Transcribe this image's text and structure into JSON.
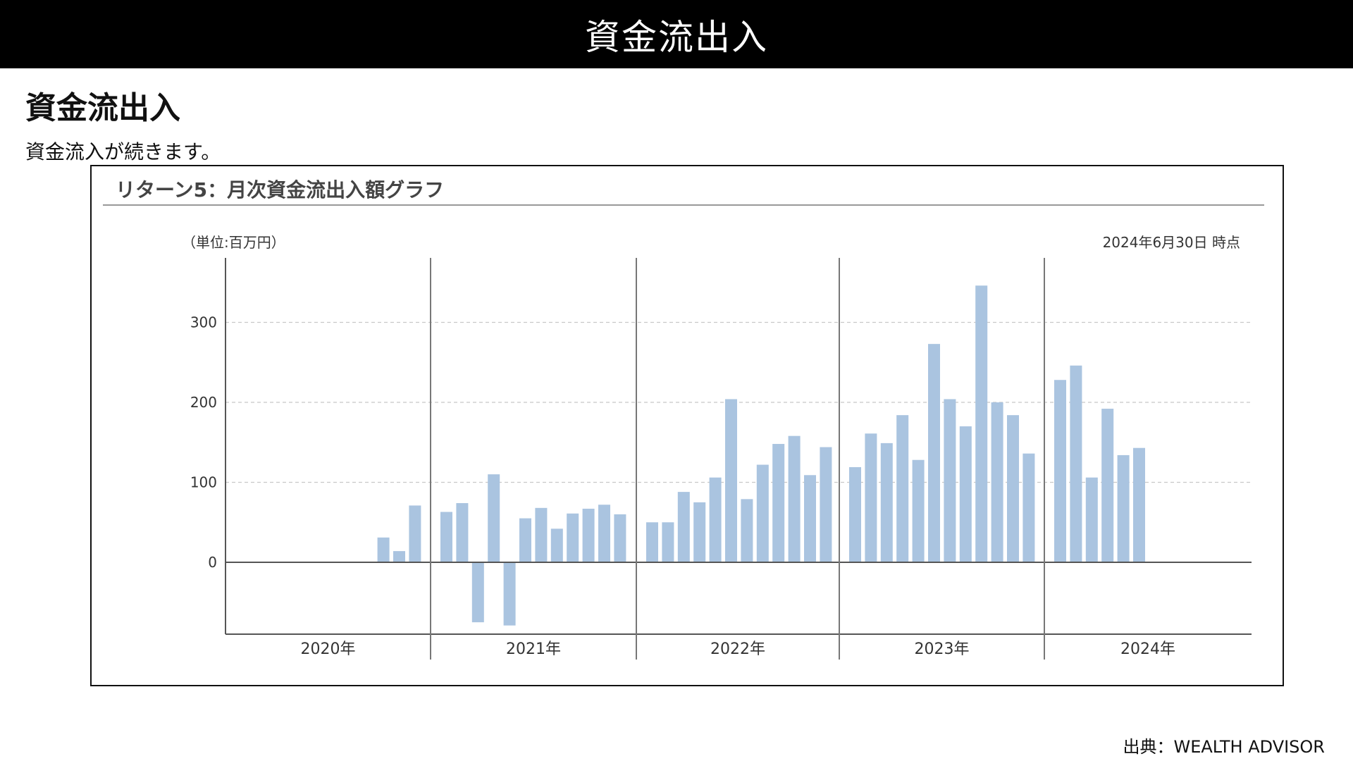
{
  "header": {
    "title": "資金流出入"
  },
  "section": {
    "title": "資金流出入",
    "subtitle": "資金流入が続きます。"
  },
  "chart_data": {
    "type": "bar",
    "title": "リターン5：月次資金流出入額グラフ",
    "unit_label": "（単位:百万円）",
    "as_of": "2024年6月30日 時点",
    "xlabel": "",
    "ylabel": "",
    "ylim": [
      -88,
      380
    ],
    "yticks": [
      0,
      100,
      200,
      300
    ],
    "grid": true,
    "color": "#aac4e0",
    "years": [
      {
        "label": "2020年",
        "values": [
          null,
          null,
          null,
          null,
          null,
          null,
          null,
          null,
          null,
          31,
          14,
          71
        ]
      },
      {
        "label": "2021年",
        "values": [
          63,
          74,
          -75,
          110,
          -79,
          55,
          68,
          42,
          61,
          67,
          72,
          60
        ]
      },
      {
        "label": "2022年",
        "values": [
          50,
          50,
          88,
          75,
          106,
          204,
          79,
          122,
          148,
          158,
          109,
          144
        ]
      },
      {
        "label": "2023年",
        "values": [
          119,
          161,
          149,
          184,
          128,
          273,
          204,
          170,
          346,
          200,
          184,
          136
        ]
      },
      {
        "label": "2024年",
        "values": [
          228,
          246,
          106,
          192,
          134,
          143
        ]
      }
    ]
  },
  "source": {
    "text": "出典：WEALTH ADVISOR"
  }
}
